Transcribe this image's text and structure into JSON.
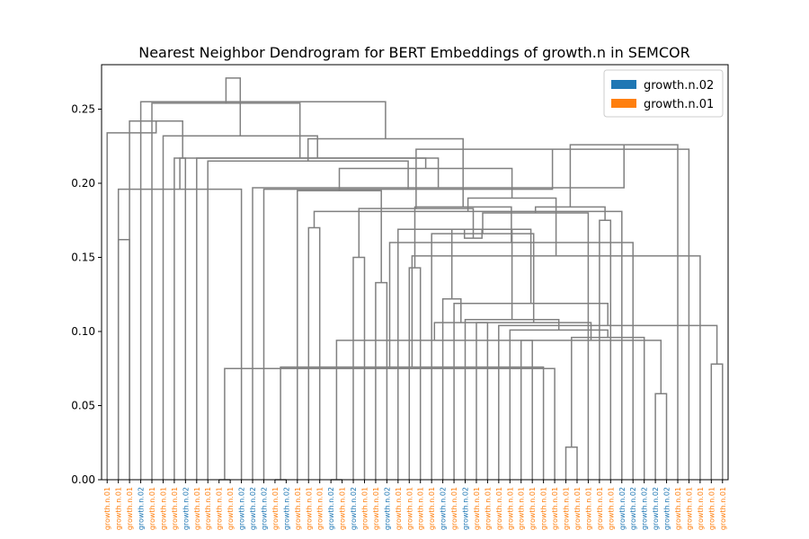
{
  "chart_data": {
    "type": "dendrogram",
    "title": "Nearest Neighbor Dendrogram for BERT Embeddings of growth.n in SEMCOR",
    "xlabel": "",
    "ylabel": "",
    "ylim": [
      0.0,
      0.28
    ],
    "y_ticks": [
      "0.00",
      "0.05",
      "0.10",
      "0.15",
      "0.20",
      "0.25"
    ],
    "grid": false,
    "legend_position": "top-right",
    "legend": [
      {
        "label": "growth.n.02",
        "color": "#1f77b4"
      },
      {
        "label": "growth.n.01",
        "color": "#ff7f0e"
      }
    ],
    "link_color": "#808080",
    "leaves": [
      {
        "label": "growth.n.01",
        "sense": "growth.n.01"
      },
      {
        "label": "growth.n.01",
        "sense": "growth.n.01"
      },
      {
        "label": "growth.n.01",
        "sense": "growth.n.01"
      },
      {
        "label": "growth.n.02",
        "sense": "growth.n.02"
      },
      {
        "label": "growth.n.01",
        "sense": "growth.n.01"
      },
      {
        "label": "growth.n.01",
        "sense": "growth.n.01"
      },
      {
        "label": "growth.n.01",
        "sense": "growth.n.01"
      },
      {
        "label": "growth.n.02",
        "sense": "growth.n.02"
      },
      {
        "label": "growth.n.01",
        "sense": "growth.n.01"
      },
      {
        "label": "growth.n.01",
        "sense": "growth.n.01"
      },
      {
        "label": "growth.n.01",
        "sense": "growth.n.01"
      },
      {
        "label": "growth.n.01",
        "sense": "growth.n.01"
      },
      {
        "label": "growth.n.02",
        "sense": "growth.n.02"
      },
      {
        "label": "growth.n.02",
        "sense": "growth.n.02"
      },
      {
        "label": "growth.n.02",
        "sense": "growth.n.02"
      },
      {
        "label": "growth.n.01",
        "sense": "growth.n.01"
      },
      {
        "label": "growth.n.02",
        "sense": "growth.n.02"
      },
      {
        "label": "growth.n.01",
        "sense": "growth.n.01"
      },
      {
        "label": "growth.n.01",
        "sense": "growth.n.01"
      },
      {
        "label": "growth.n.01",
        "sense": "growth.n.01"
      },
      {
        "label": "growth.n.02",
        "sense": "growth.n.02"
      },
      {
        "label": "growth.n.01",
        "sense": "growth.n.01"
      },
      {
        "label": "growth.n.02",
        "sense": "growth.n.02"
      },
      {
        "label": "growth.n.01",
        "sense": "growth.n.01"
      },
      {
        "label": "growth.n.01",
        "sense": "growth.n.01"
      },
      {
        "label": "growth.n.02",
        "sense": "growth.n.02"
      },
      {
        "label": "growth.n.01",
        "sense": "growth.n.01"
      },
      {
        "label": "growth.n.01",
        "sense": "growth.n.01"
      },
      {
        "label": "growth.n.01",
        "sense": "growth.n.01"
      },
      {
        "label": "growth.n.01",
        "sense": "growth.n.01"
      },
      {
        "label": "growth.n.02",
        "sense": "growth.n.02"
      },
      {
        "label": "growth.n.01",
        "sense": "growth.n.01"
      },
      {
        "label": "growth.n.02",
        "sense": "growth.n.02"
      },
      {
        "label": "growth.n.01",
        "sense": "growth.n.01"
      },
      {
        "label": "growth.n.01",
        "sense": "growth.n.01"
      },
      {
        "label": "growth.n.01",
        "sense": "growth.n.01"
      },
      {
        "label": "growth.n.01",
        "sense": "growth.n.01"
      },
      {
        "label": "growth.n.01",
        "sense": "growth.n.01"
      },
      {
        "label": "growth.n.01",
        "sense": "growth.n.01"
      },
      {
        "label": "growth.n.01",
        "sense": "growth.n.01"
      },
      {
        "label": "growth.n.01",
        "sense": "growth.n.01"
      },
      {
        "label": "growth.n.01",
        "sense": "growth.n.01"
      },
      {
        "label": "growth.n.01",
        "sense": "growth.n.01"
      },
      {
        "label": "growth.n.01",
        "sense": "growth.n.01"
      },
      {
        "label": "growth.n.01",
        "sense": "growth.n.01"
      },
      {
        "label": "growth.n.01",
        "sense": "growth.n.01"
      },
      {
        "label": "growth.n.02",
        "sense": "growth.n.02"
      },
      {
        "label": "growth.n.02",
        "sense": "growth.n.02"
      },
      {
        "label": "growth.n.02",
        "sense": "growth.n.02"
      },
      {
        "label": "growth.n.02",
        "sense": "growth.n.02"
      },
      {
        "label": "growth.n.02",
        "sense": "growth.n.02"
      },
      {
        "label": "growth.n.01",
        "sense": "growth.n.01"
      },
      {
        "label": "growth.n.01",
        "sense": "growth.n.01"
      },
      {
        "label": "growth.n.01",
        "sense": "growth.n.01"
      },
      {
        "label": "growth.n.01",
        "sense": "growth.n.01"
      },
      {
        "label": "growth.n.01",
        "sense": "growth.n.01"
      }
    ],
    "merges": [
      {
        "a": 10,
        "b": 11,
        "h": 0.0
      },
      {
        "a": 15,
        "b": 16,
        "h": 0.0
      },
      {
        "a": 20,
        "b": 21,
        "h": 0.0
      },
      {
        "a": 41,
        "b": 42,
        "h": 0.022
      },
      {
        "a": 56,
        "b": 40,
        "h": 0.075
      },
      {
        "a": 57,
        "b": 39,
        "h": 0.076
      },
      {
        "a": 49,
        "b": 50,
        "h": 0.058
      },
      {
        "a": 59,
        "b": 48,
        "h": 0.096
      },
      {
        "a": 54,
        "b": 55,
        "h": 0.078
      },
      {
        "a": 38,
        "b": 58,
        "h": 0.094
      },
      {
        "a": 37,
        "b": 62,
        "h": 0.094
      },
      {
        "a": 36,
        "b": 63,
        "h": 0.101
      },
      {
        "a": 35,
        "b": 64,
        "h": 0.104
      },
      {
        "a": 34,
        "b": 65,
        "h": 0.106
      },
      {
        "a": 33,
        "b": 66,
        "h": 0.106
      },
      {
        "a": 32,
        "b": 67,
        "h": 0.108
      },
      {
        "a": 31,
        "b": 68,
        "h": 0.119
      },
      {
        "a": 30,
        "b": 69,
        "h": 0.122
      },
      {
        "a": 29,
        "b": 70,
        "h": 0.166
      },
      {
        "a": 27,
        "b": 28,
        "h": 0.143
      },
      {
        "a": 26,
        "b": 72,
        "h": 0.169
      },
      {
        "a": 73,
        "b": 71,
        "h": 0.169
      },
      {
        "a": 24,
        "b": 25,
        "h": 0.133
      },
      {
        "a": 22,
        "b": 23,
        "h": 0.15
      },
      {
        "a": 77,
        "b": 76,
        "h": 0.163
      },
      {
        "a": 18,
        "b": 19,
        "h": 0.17
      },
      {
        "a": 44,
        "b": 45,
        "h": 0.175
      },
      {
        "a": 74,
        "b": 43,
        "h": 0.18
      },
      {
        "a": 47,
        "b": 60,
        "h": 0.16
      },
      {
        "a": 46,
        "b": 81,
        "h": 0.181
      },
      {
        "a": 80,
        "b": 79,
        "h": 0.183
      },
      {
        "a": 83,
        "b": 82,
        "h": 0.184
      },
      {
        "a": 75,
        "b": 84,
        "h": 0.184
      },
      {
        "a": 53,
        "b": 61,
        "h": 0.151
      },
      {
        "a": 52,
        "b": 86,
        "h": 0.223
      },
      {
        "a": 51,
        "b": 87,
        "h": 0.226
      },
      {
        "a": 17,
        "b": 78,
        "h": 0.195
      },
      {
        "a": 89,
        "b": 85,
        "h": 0.19
      },
      {
        "a": 14,
        "b": 90,
        "h": 0.196
      },
      {
        "a": 13,
        "b": 91,
        "h": 0.197
      },
      {
        "a": 12,
        "b": 1,
        "h": 0.196
      },
      {
        "a": 93,
        "b": 92,
        "h": 0.21
      },
      {
        "a": 9,
        "b": 94,
        "h": 0.215
      },
      {
        "a": 8,
        "b": 95,
        "h": 0.217
      },
      {
        "a": 7,
        "b": 96,
        "h": 0.217
      },
      {
        "a": 6,
        "b": 97,
        "h": 0.217
      },
      {
        "a": 98,
        "b": 88,
        "h": 0.23
      },
      {
        "a": 5,
        "b": 99,
        "h": 0.232
      },
      {
        "a": 2,
        "b": 100,
        "h": 0.242
      },
      {
        "a": 4,
        "b": 101,
        "h": 0.254
      },
      {
        "a": 3,
        "b": 102,
        "h": 0.255
      },
      {
        "a": 1,
        "b": 2,
        "h": 0.162
      },
      {
        "a": 0,
        "b": 104,
        "h": 0.234
      },
      {
        "a": 105,
        "b": 103,
        "h": 0.271
      }
    ]
  }
}
